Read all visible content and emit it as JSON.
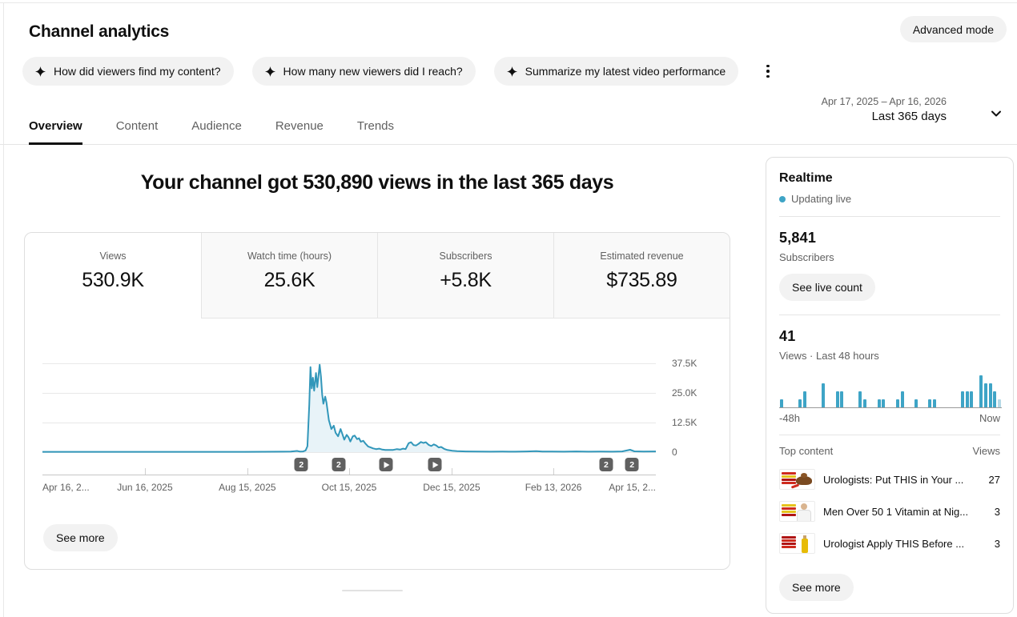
{
  "page": {
    "title": "Channel analytics"
  },
  "header": {
    "advanced_mode_label": "Advanced mode",
    "suggestion_chips": [
      {
        "label": "How did viewers find my content?"
      },
      {
        "label": "How many new viewers did I reach?"
      },
      {
        "label": "Summarize my latest video performance"
      }
    ]
  },
  "tabs": [
    {
      "label": "Overview",
      "active": true
    },
    {
      "label": "Content",
      "active": false
    },
    {
      "label": "Audience",
      "active": false
    },
    {
      "label": "Revenue",
      "active": false
    },
    {
      "label": "Trends",
      "active": false
    }
  ],
  "date_picker": {
    "range": "Apr 17, 2025 – Apr 16, 2026",
    "preset": "Last 365 days"
  },
  "overview": {
    "headline": "Your channel got 530,890 views in the last 365 days",
    "metric_cards": [
      {
        "label": "Views",
        "value": "530.9K",
        "active": true
      },
      {
        "label": "Watch time (hours)",
        "value": "25.6K",
        "active": false
      },
      {
        "label": "Subscribers",
        "value": "+5.8K",
        "active": false
      },
      {
        "label": "Estimated revenue",
        "value": "$735.89",
        "active": false
      }
    ],
    "see_more_label": "See more"
  },
  "colors": {
    "line": "#3297ba",
    "area_fill": "#e8f3f8",
    "realtime_bar": "#3ea4c6",
    "realtime_bar_partial": "#b5d9e6",
    "live_dot": "#3ea4c6",
    "badge_bg": "#606060"
  },
  "chart_data": [
    {
      "type": "line",
      "title": "Daily views, last 365 days",
      "ylabel": "Views",
      "ylim": [
        0,
        42000
      ],
      "y_ticks": [
        {
          "label": "37.5K",
          "value": 37500
        },
        {
          "label": "25.0K",
          "value": 25000
        },
        {
          "label": "12.5K",
          "value": 12500
        },
        {
          "label": "0",
          "value": 0
        }
      ],
      "x_ticks": [
        {
          "label": "Apr 16, 2...",
          "x": 0.0,
          "align": "left",
          "tick": false
        },
        {
          "label": "Jun 16, 2025",
          "x": 0.167,
          "align": "center",
          "tick": true
        },
        {
          "label": "Aug 15, 2025",
          "x": 0.334,
          "align": "center",
          "tick": true
        },
        {
          "label": "Oct 15, 2025",
          "x": 0.5,
          "align": "center",
          "tick": true
        },
        {
          "label": "Dec 15, 2025",
          "x": 0.667,
          "align": "center",
          "tick": true
        },
        {
          "label": "Feb 13, 2026",
          "x": 0.833,
          "align": "center",
          "tick": true
        },
        {
          "label": "Apr 15, 2...",
          "x": 1.0,
          "align": "right",
          "tick": false
        }
      ],
      "points": [
        [
          0,
          150
        ],
        [
          0.03,
          140
        ],
        [
          0.06,
          150
        ],
        [
          0.09,
          140
        ],
        [
          0.12,
          150
        ],
        [
          0.15,
          150
        ],
        [
          0.18,
          140
        ],
        [
          0.21,
          150
        ],
        [
          0.24,
          150
        ],
        [
          0.27,
          140
        ],
        [
          0.3,
          150
        ],
        [
          0.33,
          150
        ],
        [
          0.36,
          160
        ],
        [
          0.39,
          200
        ],
        [
          0.405,
          250
        ],
        [
          0.415,
          500
        ],
        [
          0.42,
          250
        ],
        [
          0.425,
          300
        ],
        [
          0.429,
          700
        ],
        [
          0.432,
          2500
        ],
        [
          0.435,
          20000
        ],
        [
          0.437,
          36000
        ],
        [
          0.439,
          27000
        ],
        [
          0.441,
          31500
        ],
        [
          0.443,
          26000
        ],
        [
          0.446,
          33500
        ],
        [
          0.448,
          27500
        ],
        [
          0.452,
          37000
        ],
        [
          0.454,
          32000
        ],
        [
          0.456,
          24500
        ],
        [
          0.458,
          20500
        ],
        [
          0.461,
          23500
        ],
        [
          0.463,
          21000
        ],
        [
          0.467,
          13500
        ],
        [
          0.471,
          9800
        ],
        [
          0.475,
          11200
        ],
        [
          0.478,
          8200
        ],
        [
          0.482,
          6700
        ],
        [
          0.486,
          9800
        ],
        [
          0.489,
          7600
        ],
        [
          0.492,
          5300
        ],
        [
          0.496,
          7300
        ],
        [
          0.499,
          6300
        ],
        [
          0.502,
          4500
        ],
        [
          0.506,
          6700
        ],
        [
          0.509,
          7000
        ],
        [
          0.513,
          5500
        ],
        [
          0.516,
          5900
        ],
        [
          0.519,
          4400
        ],
        [
          0.523,
          4800
        ],
        [
          0.527,
          3500
        ],
        [
          0.531,
          2400
        ],
        [
          0.535,
          2000
        ],
        [
          0.539,
          1600
        ],
        [
          0.544,
          1300
        ],
        [
          0.549,
          1500
        ],
        [
          0.554,
          1100
        ],
        [
          0.559,
          900
        ],
        [
          0.565,
          950
        ],
        [
          0.571,
          900
        ],
        [
          0.578,
          1300
        ],
        [
          0.583,
          1100
        ],
        [
          0.588,
          1500
        ],
        [
          0.592,
          1300
        ],
        [
          0.597,
          3800
        ],
        [
          0.601,
          4200
        ],
        [
          0.605,
          3000
        ],
        [
          0.609,
          2800
        ],
        [
          0.613,
          3500
        ],
        [
          0.617,
          4300
        ],
        [
          0.621,
          3900
        ],
        [
          0.625,
          4200
        ],
        [
          0.63,
          3000
        ],
        [
          0.634,
          2600
        ],
        [
          0.638,
          3300
        ],
        [
          0.642,
          2800
        ],
        [
          0.646,
          2000
        ],
        [
          0.65,
          2200
        ],
        [
          0.655,
          1400
        ],
        [
          0.66,
          900
        ],
        [
          0.668,
          600
        ],
        [
          0.676,
          400
        ],
        [
          0.69,
          300
        ],
        [
          0.71,
          250
        ],
        [
          0.73,
          200
        ],
        [
          0.75,
          250
        ],
        [
          0.77,
          200
        ],
        [
          0.79,
          300
        ],
        [
          0.805,
          450
        ],
        [
          0.815,
          250
        ],
        [
          0.83,
          250
        ],
        [
          0.85,
          200
        ],
        [
          0.87,
          300
        ],
        [
          0.89,
          200
        ],
        [
          0.91,
          250
        ],
        [
          0.93,
          200
        ],
        [
          0.945,
          300
        ],
        [
          0.958,
          1000
        ],
        [
          0.965,
          350
        ],
        [
          0.98,
          250
        ],
        [
          1,
          300
        ]
      ],
      "markers": [
        {
          "x": 0.422,
          "type": "badge",
          "label": "2"
        },
        {
          "x": 0.483,
          "type": "badge",
          "label": "2"
        },
        {
          "x": 0.56,
          "type": "video",
          "label": ""
        },
        {
          "x": 0.64,
          "type": "video",
          "label": ""
        },
        {
          "x": 0.919,
          "type": "badge",
          "label": "2"
        },
        {
          "x": 0.961,
          "type": "badge",
          "label": "2"
        }
      ]
    },
    {
      "type": "bar",
      "title": "Views, last 48 hours",
      "total": 41,
      "x_left_label": "-48h",
      "x_right_label": "Now",
      "values": [
        1,
        0,
        0,
        0,
        1,
        2,
        0,
        0,
        0,
        3,
        0,
        0,
        2,
        2,
        0,
        0,
        0,
        2,
        1,
        0,
        0,
        1,
        1,
        0,
        0,
        1,
        2,
        0,
        0,
        1,
        0,
        0,
        1,
        1,
        0,
        0,
        0,
        0,
        0,
        2,
        2,
        2,
        0,
        4,
        3,
        3,
        2,
        1
      ],
      "last_bar_partial": true
    }
  ],
  "realtime": {
    "title": "Realtime",
    "status": "Updating live",
    "subscribers": "5,841",
    "subscribers_label": "Subscribers",
    "live_count_button": "See live count",
    "views_48h": "41",
    "views_48h_label": "Views · Last 48 hours",
    "axis_left": "-48h",
    "axis_right": "Now",
    "top_content_label": "Top content",
    "views_col_label": "Views",
    "top_content": [
      {
        "title": "Urologists: Put THIS in Your ...",
        "views": "27"
      },
      {
        "title": "Men Over 50 1 Vitamin at Nig...",
        "views": "3"
      },
      {
        "title": "Urologist Apply THIS Before ...",
        "views": "3"
      }
    ],
    "see_more_label": "See more"
  }
}
